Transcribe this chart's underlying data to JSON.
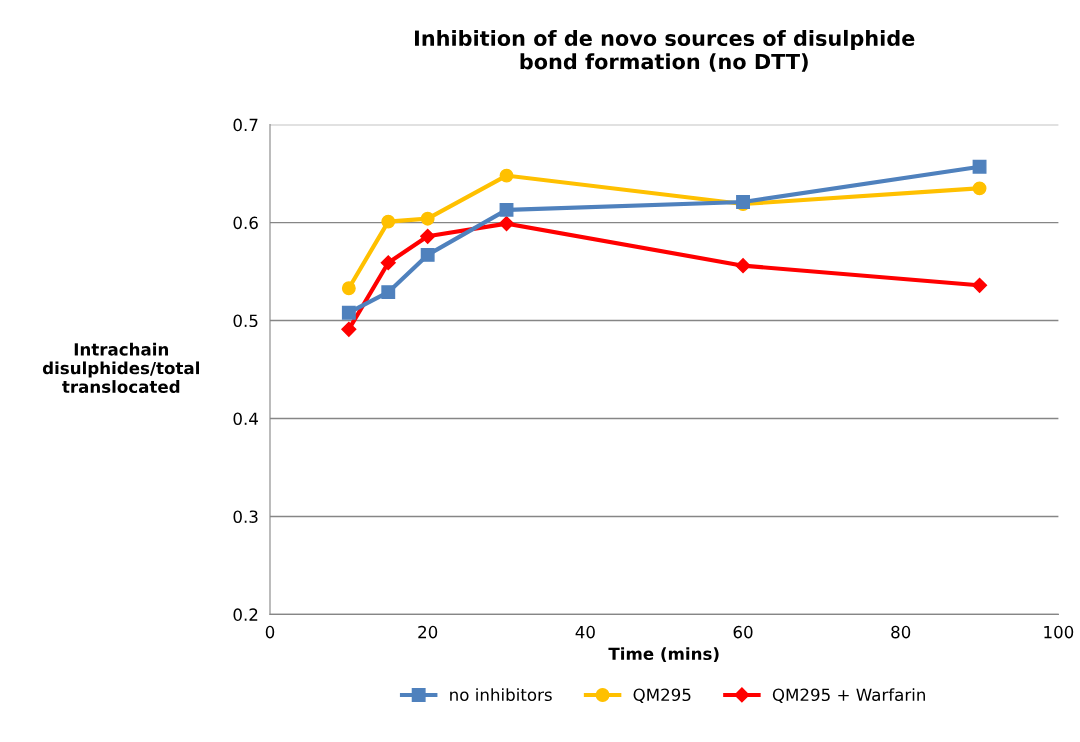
{
  "chart_data": {
    "type": "line",
    "title": "Inhibition of de novo sources of disulphide\nbond formation (no DTT)",
    "xlabel": "Time (mins)",
    "ylabel": "Intrachain\ndisulphides/total\ntranslocated",
    "x": [
      10,
      15,
      20,
      30,
      60,
      90
    ],
    "series": [
      {
        "name": "no inhibitors",
        "color": "#4f81bd",
        "marker": "square",
        "values": [
          0.508,
          0.529,
          0.567,
          0.613,
          0.621,
          0.657
        ]
      },
      {
        "name": "QM295",
        "color": "#ffc000",
        "marker": "circle",
        "values": [
          0.533,
          0.601,
          0.604,
          0.648,
          0.619,
          0.635
        ]
      },
      {
        "name": "QM295 + Warfarin",
        "color": "#ff0000",
        "marker": "diamond",
        "values": [
          0.491,
          0.559,
          0.586,
          0.599,
          0.556,
          0.536
        ]
      }
    ],
    "xlim": [
      0,
      100
    ],
    "xticks": [
      0,
      20,
      40,
      60,
      80,
      100
    ],
    "ylim": [
      0.2,
      0.7
    ],
    "yticks": [
      0.2,
      0.3,
      0.4,
      0.5,
      0.6,
      0.7
    ],
    "grid": "y",
    "legend": "bottom",
    "line_style": "solid"
  }
}
